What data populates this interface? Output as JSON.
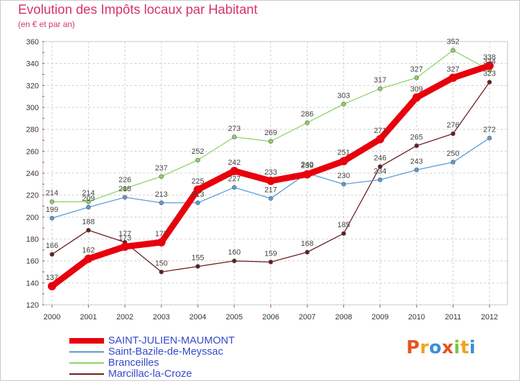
{
  "header": {
    "title": "Evolution des Impôts locaux par Habitant",
    "subtitle": "(en € et par an)"
  },
  "brand": {
    "letters": [
      "P",
      "r",
      "o",
      "x",
      "i",
      "t",
      "i"
    ],
    "colors": [
      "#e8531e",
      "#f2a21c",
      "#3a8fd8",
      "#e8531e",
      "#7cc242",
      "#f2a21c",
      "#3a8fd8"
    ]
  },
  "chart_data": {
    "type": "line",
    "x": [
      "2000",
      "2001",
      "2002",
      "2003",
      "2004",
      "2005",
      "2006",
      "2007",
      "2008",
      "2009",
      "2010",
      "2011",
      "2012"
    ],
    "ylim": [
      120,
      360
    ],
    "yticks": [
      120,
      140,
      160,
      180,
      200,
      220,
      240,
      260,
      280,
      300,
      320,
      340,
      360
    ],
    "grid": true,
    "legend_position": "bottom-left",
    "series": [
      {
        "name": "SAINT-JULIEN-MAUMONT",
        "color": "#e8000c",
        "values": [
          137,
          162,
          173,
          177,
          225,
          242,
          233,
          239,
          251,
          271,
          309,
          327,
          338
        ]
      },
      {
        "name": "Saint-Bazile-de-Meyssac",
        "color": "#5b9bd5",
        "values": [
          199,
          209,
          218,
          213,
          213,
          227,
          217,
          240,
          230,
          234,
          243,
          250,
          272
        ]
      },
      {
        "name": "Branceilles",
        "color": "#8fd16a",
        "values": [
          214,
          214,
          226,
          237,
          252,
          273,
          269,
          286,
          303,
          317,
          327,
          352,
          334
        ]
      },
      {
        "name": "Marcillac-la-Croze",
        "color": "#6b1c1c",
        "values": [
          166,
          188,
          177,
          150,
          155,
          160,
          159,
          168,
          185,
          246,
          265,
          276,
          323
        ]
      }
    ]
  }
}
